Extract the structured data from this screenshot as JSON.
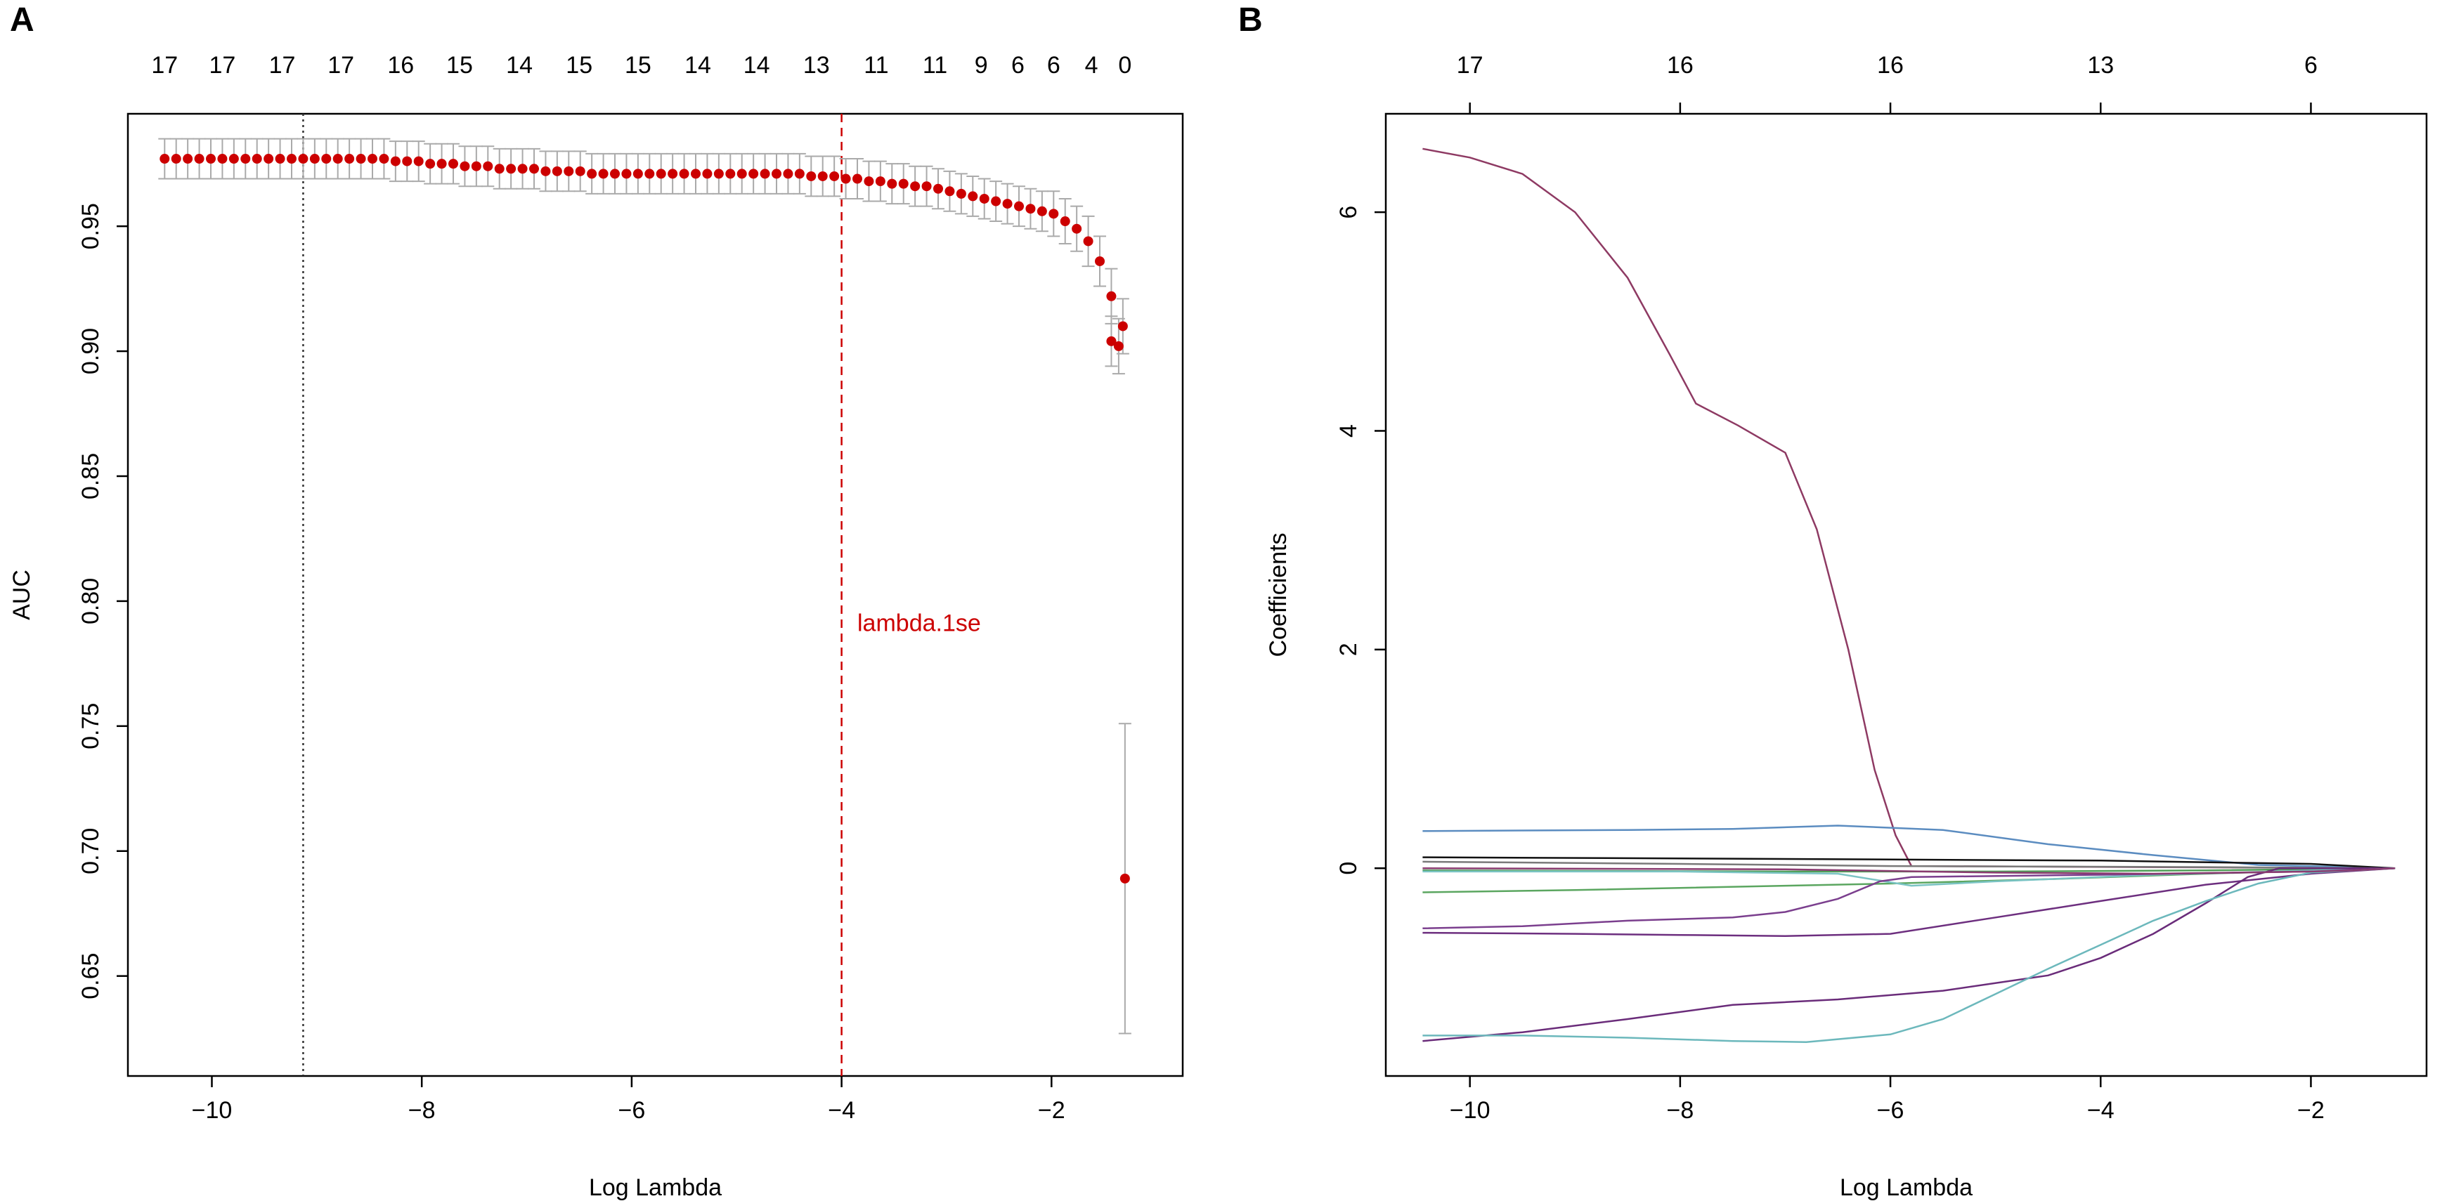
{
  "panels": {
    "a_label": "A",
    "b_label": "B"
  },
  "chart_data": [
    {
      "type": "scatter",
      "panel": "A",
      "title": "",
      "xlabel": "Log Lambda",
      "ylabel": "AUC",
      "xlim": [
        -10.8,
        -0.75
      ],
      "ylim": [
        0.61,
        0.995
      ],
      "x_ticks": [
        -10,
        -8,
        -6,
        -4,
        -2
      ],
      "x_tick_labels": [
        "−10",
        "−8",
        "−6",
        "−4",
        "−2"
      ],
      "y_ticks": [
        0.65,
        0.7,
        0.75,
        0.8,
        0.85,
        0.9,
        0.95
      ],
      "y_tick_labels": [
        "0.65",
        "0.70",
        "0.75",
        "0.80",
        "0.85",
        "0.90",
        "0.95"
      ],
      "top_axis": {
        "x": [
          -10.45,
          -9.9,
          -9.33,
          -8.77,
          -8.2,
          -7.64,
          -7.07,
          -6.5,
          -5.94,
          -5.37,
          -4.81,
          -4.24,
          -3.67,
          -3.11,
          -2.67,
          -2.32,
          -1.98,
          -1.62,
          -1.3
        ],
        "labels": [
          "17",
          "17",
          "17",
          "17",
          "16",
          "15",
          "14",
          "15",
          "15",
          "14",
          "14",
          "13",
          "11",
          "11",
          "9",
          "6",
          "6",
          "4",
          "0"
        ]
      },
      "series": [
        {
          "name": "cv_auc",
          "marker_color": "#cc0000",
          "error_color": "#aaaaaa",
          "x": [
            -10.45,
            -10.34,
            -10.23,
            -10.12,
            -10.01,
            -9.9,
            -9.79,
            -9.68,
            -9.57,
            -9.46,
            -9.35,
            -9.24,
            -9.13,
            -9.02,
            -8.91,
            -8.8,
            -8.69,
            -8.58,
            -8.47,
            -8.36,
            -8.25,
            -8.14,
            -8.03,
            -7.92,
            -7.81,
            -7.7,
            -7.59,
            -7.48,
            -7.37,
            -7.26,
            -7.15,
            -7.04,
            -6.93,
            -6.82,
            -6.71,
            -6.6,
            -6.49,
            -6.38,
            -6.27,
            -6.16,
            -6.05,
            -5.94,
            -5.83,
            -5.72,
            -5.61,
            -5.5,
            -5.39,
            -5.28,
            -5.17,
            -5.06,
            -4.95,
            -4.84,
            -4.73,
            -4.62,
            -4.51,
            -4.4,
            -4.29,
            -4.18,
            -4.07,
            -3.96,
            -3.85,
            -3.74,
            -3.63,
            -3.52,
            -3.41,
            -3.3,
            -3.19,
            -3.08,
            -2.97,
            -2.86,
            -2.75,
            -2.64,
            -2.53,
            -2.42,
            -2.31,
            -2.2,
            -2.09,
            -1.98,
            -1.87,
            -1.76,
            -1.65,
            -1.54,
            -1.43,
            -1.32,
            -1.3
          ],
          "values": [
            0.977,
            0.977,
            0.977,
            0.977,
            0.977,
            0.977,
            0.977,
            0.977,
            0.977,
            0.977,
            0.977,
            0.977,
            0.977,
            0.977,
            0.977,
            0.977,
            0.977,
            0.977,
            0.977,
            0.977,
            0.976,
            0.976,
            0.976,
            0.975,
            0.975,
            0.975,
            0.974,
            0.974,
            0.974,
            0.973,
            0.973,
            0.973,
            0.973,
            0.972,
            0.972,
            0.972,
            0.972,
            0.971,
            0.971,
            0.971,
            0.971,
            0.971,
            0.971,
            0.971,
            0.971,
            0.971,
            0.971,
            0.971,
            0.971,
            0.971,
            0.971,
            0.971,
            0.971,
            0.971,
            0.971,
            0.971,
            0.97,
            0.97,
            0.97,
            0.969,
            0.969,
            0.968,
            0.968,
            0.967,
            0.967,
            0.966,
            0.966,
            0.965,
            0.964,
            0.963,
            0.962,
            0.961,
            0.96,
            0.959,
            0.958,
            0.957,
            0.956,
            0.955,
            0.952,
            0.949,
            0.944,
            0.936,
            0.922,
            0.91,
            0.689
          ],
          "errors": [
            0.008,
            0.008,
            0.008,
            0.008,
            0.008,
            0.008,
            0.008,
            0.008,
            0.008,
            0.008,
            0.008,
            0.008,
            0.008,
            0.008,
            0.008,
            0.008,
            0.008,
            0.008,
            0.008,
            0.008,
            0.008,
            0.008,
            0.008,
            0.008,
            0.008,
            0.008,
            0.008,
            0.008,
            0.008,
            0.008,
            0.008,
            0.008,
            0.008,
            0.008,
            0.008,
            0.008,
            0.008,
            0.008,
            0.008,
            0.008,
            0.008,
            0.008,
            0.008,
            0.008,
            0.008,
            0.008,
            0.008,
            0.008,
            0.008,
            0.008,
            0.008,
            0.008,
            0.008,
            0.008,
            0.008,
            0.008,
            0.008,
            0.008,
            0.008,
            0.008,
            0.008,
            0.008,
            0.008,
            0.008,
            0.008,
            0.008,
            0.008,
            0.008,
            0.008,
            0.008,
            0.008,
            0.008,
            0.008,
            0.008,
            0.008,
            0.008,
            0.008,
            0.009,
            0.009,
            0.009,
            0.01,
            0.01,
            0.011,
            0.011,
            0.062
          ]
        }
      ],
      "extra_points": [
        {
          "x": -1.43,
          "y": 0.904,
          "error": 0.01
        },
        {
          "x": -1.36,
          "y": 0.902,
          "error": 0.011
        }
      ],
      "vlines": [
        {
          "x": -9.13,
          "style": "dotted",
          "color": "#333333",
          "label": ""
        },
        {
          "x": -4.0,
          "style": "dashed",
          "color": "#cc0000",
          "label": ""
        }
      ],
      "annotations": [
        {
          "text": "lambda.1se",
          "x": -3.85,
          "y": 0.788,
          "color": "#cc0000"
        }
      ]
    },
    {
      "type": "line",
      "panel": "B",
      "title": "",
      "xlabel": "Log Lambda",
      "ylabel": "Coefficients",
      "xlim": [
        -10.8,
        -0.9
      ],
      "ylim": [
        -1.9,
        6.9
      ],
      "x_ticks": [
        -10,
        -8,
        -6,
        -4,
        -2
      ],
      "x_tick_labels": [
        "−10",
        "−8",
        "−6",
        "−4",
        "−2"
      ],
      "y_ticks": [
        0,
        2,
        4,
        6
      ],
      "y_tick_labels": [
        "0",
        "2",
        "4",
        "6"
      ],
      "top_axis": {
        "x": [
          -10,
          -8,
          -6,
          -4,
          -2
        ],
        "labels": [
          "17",
          "16",
          "16",
          "13",
          "6"
        ]
      },
      "series": [
        {
          "name": "coef_1",
          "color": "#8e3a63",
          "points": [
            [
              -10.45,
              6.58
            ],
            [
              -10.0,
              6.5
            ],
            [
              -9.5,
              6.35
            ],
            [
              -9.0,
              6.0
            ],
            [
              -8.5,
              5.4
            ],
            [
              -8.1,
              4.7
            ],
            [
              -7.85,
              4.25
            ],
            [
              -7.45,
              4.05
            ],
            [
              -7.0,
              3.8
            ],
            [
              -6.7,
              3.1
            ],
            [
              -6.4,
              2.0
            ],
            [
              -6.15,
              0.9
            ],
            [
              -5.95,
              0.3
            ],
            [
              -5.8,
              0.02
            ],
            [
              -1.2,
              0
            ]
          ]
        },
        {
          "name": "coef_2",
          "color": "#5b8cc0",
          "points": [
            [
              -10.45,
              0.34
            ],
            [
              -8.5,
              0.35
            ],
            [
              -7.5,
              0.36
            ],
            [
              -6.5,
              0.39
            ],
            [
              -5.5,
              0.35
            ],
            [
              -4.5,
              0.22
            ],
            [
              -3.5,
              0.12
            ],
            [
              -2.5,
              0.03
            ],
            [
              -1.2,
              0
            ]
          ]
        },
        {
          "name": "coef_3",
          "color": "#111111",
          "points": [
            [
              -10.45,
              0.1
            ],
            [
              -8.0,
              0.09
            ],
            [
              -6.0,
              0.08
            ],
            [
              -4.0,
              0.07
            ],
            [
              -2.0,
              0.04
            ],
            [
              -1.2,
              0
            ]
          ]
        },
        {
          "name": "coef_4",
          "color": "#7a7a7a",
          "points": [
            [
              -10.45,
              0.06
            ],
            [
              -8.0,
              0.04
            ],
            [
              -6.0,
              0.02
            ],
            [
              -3.0,
              0.01
            ],
            [
              -1.2,
              0
            ]
          ]
        },
        {
          "name": "coef_5",
          "color": "#4f9e57",
          "points": [
            [
              -10.45,
              -0.02
            ],
            [
              -7.0,
              -0.03
            ],
            [
              -5.0,
              -0.03
            ],
            [
              -3.0,
              -0.02
            ],
            [
              -1.2,
              0
            ]
          ]
        },
        {
          "name": "coef_6",
          "color": "#5ba660",
          "points": [
            [
              -10.45,
              -0.22
            ],
            [
              -9.0,
              -0.2
            ],
            [
              -7.0,
              -0.16
            ],
            [
              -6.0,
              -0.14
            ],
            [
              -4.5,
              -0.1
            ],
            [
              -3.0,
              -0.05
            ],
            [
              -1.2,
              0
            ]
          ]
        },
        {
          "name": "coef_7",
          "color": "#7bc4c4",
          "points": [
            [
              -10.45,
              -0.03
            ],
            [
              -8.0,
              -0.03
            ],
            [
              -6.5,
              -0.05
            ],
            [
              -5.8,
              -0.16
            ],
            [
              -5.0,
              -0.12
            ],
            [
              -3.5,
              -0.06
            ],
            [
              -1.2,
              0
            ]
          ]
        },
        {
          "name": "coef_8",
          "color": "#7b3f8e",
          "points": [
            [
              -10.45,
              -0.55
            ],
            [
              -9.5,
              -0.53
            ],
            [
              -8.5,
              -0.48
            ],
            [
              -7.5,
              -0.45
            ],
            [
              -7.0,
              -0.4
            ],
            [
              -6.5,
              -0.28
            ],
            [
              -6.1,
              -0.12
            ],
            [
              -5.8,
              -0.08
            ],
            [
              -4.0,
              -0.06
            ],
            [
              -2.0,
              -0.03
            ],
            [
              -1.2,
              0
            ]
          ]
        },
        {
          "name": "coef_9",
          "color": "#6d2f7f",
          "points": [
            [
              -10.45,
              -0.59
            ],
            [
              -9.0,
              -0.6
            ],
            [
              -8.0,
              -0.61
            ],
            [
              -7.0,
              -0.62
            ],
            [
              -6.0,
              -0.6
            ],
            [
              -5.0,
              -0.45
            ],
            [
              -4.0,
              -0.3
            ],
            [
              -3.0,
              -0.15
            ],
            [
              -2.0,
              -0.05
            ],
            [
              -1.2,
              0
            ]
          ]
        },
        {
          "name": "coef_10",
          "color": "#6a2c7a",
          "points": [
            [
              -10.45,
              -1.58
            ],
            [
              -9.5,
              -1.5
            ],
            [
              -8.5,
              -1.38
            ],
            [
              -7.5,
              -1.25
            ],
            [
              -6.5,
              -1.2
            ],
            [
              -5.5,
              -1.12
            ],
            [
              -4.5,
              -0.98
            ],
            [
              -4.0,
              -0.82
            ],
            [
              -3.5,
              -0.6
            ],
            [
              -3.0,
              -0.32
            ],
            [
              -2.6,
              -0.08
            ],
            [
              -2.3,
              0.0
            ],
            [
              -1.2,
              0
            ]
          ]
        },
        {
          "name": "coef_11",
          "color": "#6cb8bc",
          "points": [
            [
              -10.45,
              -1.53
            ],
            [
              -9.5,
              -1.53
            ],
            [
              -8.5,
              -1.55
            ],
            [
              -7.5,
              -1.58
            ],
            [
              -6.8,
              -1.59
            ],
            [
              -6.0,
              -1.52
            ],
            [
              -5.5,
              -1.38
            ],
            [
              -5.0,
              -1.15
            ],
            [
              -4.5,
              -0.92
            ],
            [
              -4.0,
              -0.7
            ],
            [
              -3.5,
              -0.48
            ],
            [
              -3.0,
              -0.3
            ],
            [
              -2.5,
              -0.14
            ],
            [
              -2.0,
              -0.04
            ],
            [
              -1.2,
              0
            ]
          ]
        },
        {
          "name": "coef_12",
          "color": "#8a3c70",
          "points": [
            [
              -10.45,
              0.0
            ],
            [
              -7.0,
              -0.01
            ],
            [
              -5.0,
              -0.04
            ],
            [
              -3.5,
              -0.05
            ],
            [
              -2.0,
              -0.03
            ],
            [
              -1.6,
              -0.02
            ],
            [
              -1.2,
              0
            ]
          ]
        }
      ]
    }
  ]
}
